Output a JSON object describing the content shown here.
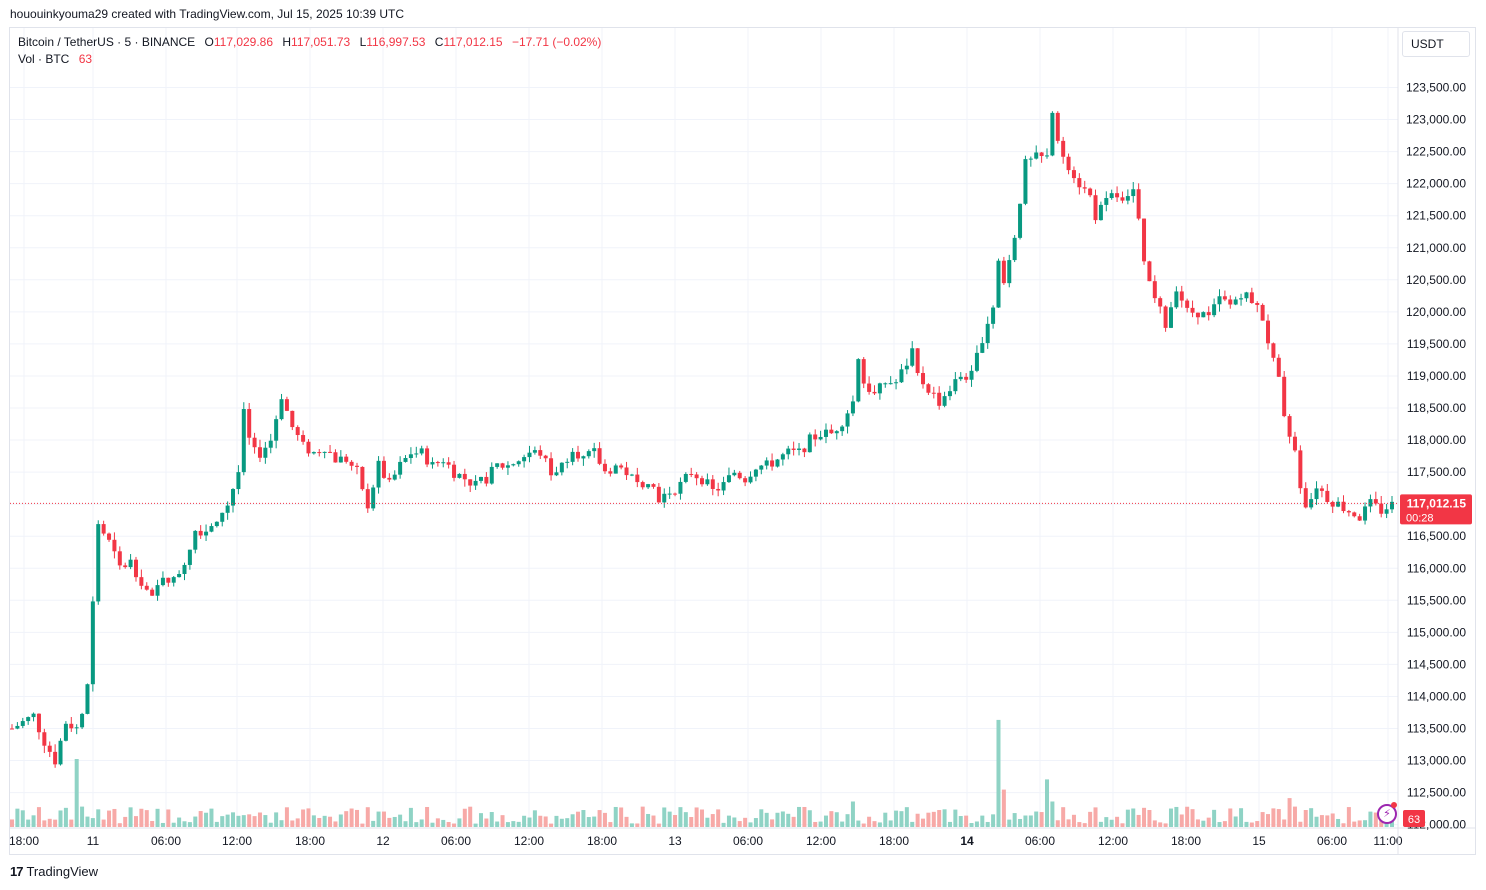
{
  "header": {
    "credit": "hououinkyouma29 created with TradingView.com, Jul 15, 2025 10:39 UTC"
  },
  "legend": {
    "symbol": "Bitcoin / TetherUS · 5 · BINANCE",
    "o_label": "O",
    "o_value": "117,029.86",
    "h_label": "H",
    "h_value": "117,051.73",
    "l_label": "L",
    "l_value": "116,997.53",
    "c_label": "C",
    "c_value": "117,012.15",
    "change": "−17.71 (−0.02%)",
    "vol_label": "Vol · BTC",
    "vol_value": "63"
  },
  "currency": "USDT",
  "footer": {
    "brand": "TradingView",
    "logo_mark": "17"
  },
  "colors": {
    "up": "#089981",
    "down": "#f23645",
    "up_vol": "#8fd3c5",
    "down_vol": "#f7a9a7",
    "grid": "#f0f3fa",
    "price_line": "#f23645"
  },
  "chart_data": {
    "type": "candlestick",
    "symbol": "BTCUSDT",
    "interval": "5",
    "ylim": [
      112000,
      124000
    ],
    "y_ticks": [
      "123,500.00",
      "123,000.00",
      "122,500.00",
      "122,000.00",
      "121,500.00",
      "121,000.00",
      "120,500.00",
      "120,000.00",
      "119,500.00",
      "119,000.00",
      "118,500.00",
      "118,000.00",
      "117,500.00",
      "117,000.00",
      "116,500.00",
      "116,000.00",
      "115,500.00",
      "115,000.00",
      "114,500.00",
      "114,000.00",
      "113,500.00",
      "113,000.00",
      "112,500.00",
      "112,000.00"
    ],
    "x_ticks": [
      "18:00",
      "11",
      "06:00",
      "12:00",
      "18:00",
      "12",
      "06:00",
      "12:00",
      "18:00",
      "13",
      "06:00",
      "12:00",
      "18:00",
      "14",
      "06:00",
      "12:00",
      "18:00",
      "15",
      "06:00",
      "11:00"
    ],
    "bold_x_ticks": [
      "14"
    ],
    "last_price": "117,012.15",
    "countdown": "00:28",
    "volume_badge": "63",
    "path": [
      [
        0,
        113500
      ],
      [
        4,
        113700
      ],
      [
        6,
        113300
      ],
      [
        8,
        113000
      ],
      [
        10,
        113600
      ],
      [
        12,
        113500
      ],
      [
        13,
        113700
      ],
      [
        14,
        114200
      ],
      [
        16,
        116700
      ],
      [
        18,
        116400
      ],
      [
        20,
        116000
      ],
      [
        22,
        116100
      ],
      [
        24,
        115800
      ],
      [
        26,
        115500
      ],
      [
        28,
        115900
      ],
      [
        30,
        115800
      ],
      [
        32,
        116100
      ],
      [
        34,
        116600
      ],
      [
        36,
        116600
      ],
      [
        38,
        116800
      ],
      [
        40,
        117000
      ],
      [
        42,
        117500
      ],
      [
        43,
        118400
      ],
      [
        44,
        118000
      ],
      [
        45,
        117800
      ],
      [
        46,
        117800
      ],
      [
        48,
        118000
      ],
      [
        50,
        118700
      ],
      [
        52,
        118200
      ],
      [
        54,
        117900
      ],
      [
        56,
        117800
      ],
      [
        58,
        117900
      ],
      [
        60,
        117700
      ],
      [
        62,
        117700
      ],
      [
        64,
        117500
      ],
      [
        66,
        117000
      ],
      [
        68,
        117600
      ],
      [
        70,
        117300
      ],
      [
        72,
        117600
      ],
      [
        74,
        117800
      ],
      [
        76,
        117800
      ],
      [
        78,
        117600
      ],
      [
        80,
        117700
      ],
      [
        82,
        117500
      ],
      [
        84,
        117400
      ],
      [
        86,
        117300
      ],
      [
        88,
        117400
      ],
      [
        90,
        117600
      ],
      [
        92,
        117600
      ],
      [
        94,
        117700
      ],
      [
        96,
        117800
      ],
      [
        98,
        117800
      ],
      [
        100,
        117500
      ],
      [
        102,
        117600
      ],
      [
        104,
        117900
      ],
      [
        106,
        117700
      ],
      [
        108,
        117800
      ],
      [
        110,
        117500
      ],
      [
        112,
        117600
      ],
      [
        114,
        117500
      ],
      [
        116,
        117300
      ],
      [
        118,
        117400
      ],
      [
        120,
        117100
      ],
      [
        122,
        117200
      ],
      [
        124,
        117300
      ],
      [
        126,
        117500
      ],
      [
        128,
        117400
      ],
      [
        130,
        117200
      ],
      [
        132,
        117300
      ],
      [
        134,
        117500
      ],
      [
        136,
        117400
      ],
      [
        138,
        117600
      ],
      [
        140,
        117600
      ],
      [
        142,
        117700
      ],
      [
        144,
        117800
      ],
      [
        146,
        117800
      ],
      [
        148,
        118000
      ],
      [
        150,
        118100
      ],
      [
        152,
        118100
      ],
      [
        154,
        118300
      ],
      [
        156,
        118600
      ],
      [
        157,
        119300
      ],
      [
        158,
        118900
      ],
      [
        160,
        118700
      ],
      [
        162,
        118900
      ],
      [
        164,
        118900
      ],
      [
        166,
        119200
      ],
      [
        167,
        119400
      ],
      [
        168,
        119000
      ],
      [
        170,
        118800
      ],
      [
        172,
        118600
      ],
      [
        174,
        118800
      ],
      [
        176,
        119000
      ],
      [
        178,
        119000
      ],
      [
        180,
        119600
      ],
      [
        182,
        120100
      ],
      [
        183,
        120800
      ],
      [
        184,
        120400
      ],
      [
        186,
        121200
      ],
      [
        188,
        122300
      ],
      [
        190,
        122400
      ],
      [
        192,
        122400
      ],
      [
        193,
        123100
      ],
      [
        194,
        122600
      ],
      [
        196,
        122300
      ],
      [
        198,
        122000
      ],
      [
        200,
        121800
      ],
      [
        201,
        121500
      ],
      [
        202,
        121600
      ],
      [
        204,
        121800
      ],
      [
        206,
        121800
      ],
      [
        208,
        121900
      ],
      [
        209,
        121400
      ],
      [
        210,
        120700
      ],
      [
        212,
        120200
      ],
      [
        214,
        119800
      ],
      [
        216,
        120400
      ],
      [
        218,
        120000
      ],
      [
        220,
        120000
      ],
      [
        222,
        119900
      ],
      [
        224,
        120200
      ],
      [
        226,
        120100
      ],
      [
        228,
        120300
      ],
      [
        230,
        120200
      ],
      [
        232,
        119900
      ],
      [
        234,
        119200
      ],
      [
        235,
        118900
      ],
      [
        236,
        118300
      ],
      [
        238,
        117800
      ],
      [
        239,
        117200
      ],
      [
        240,
        116900
      ],
      [
        242,
        117300
      ],
      [
        244,
        117100
      ],
      [
        246,
        117000
      ],
      [
        248,
        116900
      ],
      [
        250,
        116800
      ],
      [
        252,
        117000
      ],
      [
        254,
        116900
      ],
      [
        256,
        117000
      ]
    ],
    "volume_spikes": [
      [
        12,
        0.4
      ],
      [
        13,
        0.12
      ],
      [
        38,
        0.03
      ],
      [
        65,
        0.02
      ],
      [
        86,
        0.02
      ],
      [
        100,
        0.02
      ],
      [
        120,
        0.02
      ],
      [
        156,
        0.15
      ],
      [
        167,
        0.03
      ],
      [
        183,
        0.63
      ],
      [
        184,
        0.22
      ],
      [
        192,
        0.28
      ],
      [
        193,
        0.15
      ],
      [
        205,
        0.06
      ],
      [
        211,
        0.1
      ],
      [
        229,
        0.03
      ],
      [
        237,
        0.17
      ],
      [
        238,
        0.12
      ],
      [
        240,
        0.1
      ],
      [
        255,
        0.06
      ]
    ]
  }
}
